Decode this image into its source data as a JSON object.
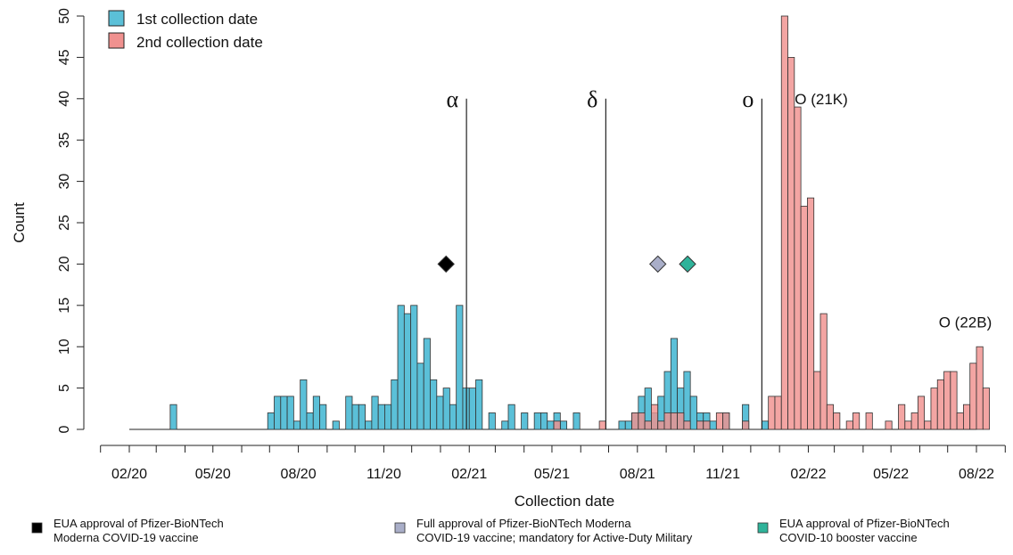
{
  "chart_data": {
    "type": "histogram",
    "title": "",
    "xlabel": "Collection date",
    "ylabel": "Count",
    "ylim": [
      0,
      50
    ],
    "y_ticks": [
      0,
      5,
      10,
      15,
      20,
      25,
      30,
      35,
      40,
      45,
      50
    ],
    "x_range_months": [
      "2020-01",
      "2022-09"
    ],
    "x_ticks": [
      {
        "label": "02/20",
        "month": "2020-02"
      },
      {
        "label": "05/20",
        "month": "2020-05"
      },
      {
        "label": "08/20",
        "month": "2020-08"
      },
      {
        "label": "11/20",
        "month": "2020-11"
      },
      {
        "label": "02/21",
        "month": "2021-02"
      },
      {
        "label": "05/21",
        "month": "2021-05"
      },
      {
        "label": "08/21",
        "month": "2021-08"
      },
      {
        "label": "11/21",
        "month": "2021-11"
      },
      {
        "label": "02/22",
        "month": "2022-02"
      },
      {
        "label": "05/22",
        "month": "2022-05"
      },
      {
        "label": "08/22",
        "month": "2022-08"
      }
    ],
    "bin_width_days": 7,
    "series": [
      {
        "name": "1st collection date",
        "color": "#5bc0d8",
        "bins": [
          [
            "2020-03-16",
            3
          ],
          [
            "2020-06-29",
            2
          ],
          [
            "2020-07-06",
            4
          ],
          [
            "2020-07-13",
            4
          ],
          [
            "2020-07-20",
            4
          ],
          [
            "2020-07-27",
            1
          ],
          [
            "2020-08-03",
            6
          ],
          [
            "2020-08-10",
            2
          ],
          [
            "2020-08-17",
            4
          ],
          [
            "2020-08-24",
            3
          ],
          [
            "2020-09-07",
            1
          ],
          [
            "2020-09-21",
            4
          ],
          [
            "2020-09-28",
            3
          ],
          [
            "2020-10-05",
            3
          ],
          [
            "2020-10-12",
            1
          ],
          [
            "2020-10-19",
            4
          ],
          [
            "2020-10-26",
            3
          ],
          [
            "2020-11-02",
            3
          ],
          [
            "2020-11-09",
            6
          ],
          [
            "2020-11-16",
            15
          ],
          [
            "2020-11-23",
            14
          ],
          [
            "2020-11-30",
            15
          ],
          [
            "2020-12-07",
            8
          ],
          [
            "2020-12-14",
            11
          ],
          [
            "2020-12-21",
            6
          ],
          [
            "2020-12-28",
            4
          ],
          [
            "2021-01-04",
            5
          ],
          [
            "2021-01-11",
            3
          ],
          [
            "2021-01-18",
            15
          ],
          [
            "2021-01-25",
            5
          ],
          [
            "2021-02-01",
            5
          ],
          [
            "2021-02-08",
            6
          ],
          [
            "2021-02-22",
            2
          ],
          [
            "2021-03-08",
            1
          ],
          [
            "2021-03-15",
            3
          ],
          [
            "2021-03-29",
            2
          ],
          [
            "2021-04-12",
            2
          ],
          [
            "2021-04-19",
            2
          ],
          [
            "2021-04-26",
            1
          ],
          [
            "2021-05-03",
            2
          ],
          [
            "2021-05-10",
            1
          ],
          [
            "2021-05-24",
            2
          ],
          [
            "2021-07-12",
            1
          ],
          [
            "2021-07-19",
            1
          ],
          [
            "2021-07-26",
            2
          ],
          [
            "2021-08-02",
            4
          ],
          [
            "2021-08-09",
            5
          ],
          [
            "2021-08-16",
            2
          ],
          [
            "2021-08-23",
            4
          ],
          [
            "2021-08-30",
            7
          ],
          [
            "2021-09-06",
            11
          ],
          [
            "2021-09-13",
            5
          ],
          [
            "2021-09-20",
            7
          ],
          [
            "2021-09-27",
            4
          ],
          [
            "2021-10-04",
            2
          ],
          [
            "2021-10-11",
            2
          ],
          [
            "2021-10-18",
            1
          ],
          [
            "2021-11-01",
            2
          ],
          [
            "2021-11-22",
            3
          ],
          [
            "2021-12-13",
            1
          ]
        ]
      },
      {
        "name": "2nd collection date",
        "color": "#f0918f",
        "bins": [
          [
            "2021-05-03",
            1
          ],
          [
            "2021-06-21",
            1
          ],
          [
            "2021-07-26",
            2
          ],
          [
            "2021-08-02",
            2
          ],
          [
            "2021-08-09",
            1
          ],
          [
            "2021-08-16",
            3
          ],
          [
            "2021-08-23",
            1
          ],
          [
            "2021-08-30",
            2
          ],
          [
            "2021-09-06",
            2
          ],
          [
            "2021-09-13",
            2
          ],
          [
            "2021-09-20",
            1
          ],
          [
            "2021-10-04",
            1
          ],
          [
            "2021-10-11",
            1
          ],
          [
            "2021-10-25",
            2
          ],
          [
            "2021-11-01",
            2
          ],
          [
            "2021-11-22",
            1
          ],
          [
            "2021-12-20",
            4
          ],
          [
            "2021-12-27",
            4
          ],
          [
            "2022-01-03",
            50
          ],
          [
            "2022-01-10",
            45
          ],
          [
            "2022-01-17",
            39
          ],
          [
            "2022-01-24",
            27
          ],
          [
            "2022-01-31",
            28
          ],
          [
            "2022-02-07",
            7
          ],
          [
            "2022-02-14",
            14
          ],
          [
            "2022-02-21",
            3
          ],
          [
            "2022-02-28",
            2
          ],
          [
            "2022-03-14",
            1
          ],
          [
            "2022-03-21",
            2
          ],
          [
            "2022-04-04",
            2
          ],
          [
            "2022-04-25",
            1
          ],
          [
            "2022-05-09",
            3
          ],
          [
            "2022-05-16",
            1
          ],
          [
            "2022-05-23",
            2
          ],
          [
            "2022-05-30",
            4
          ],
          [
            "2022-06-06",
            1
          ],
          [
            "2022-06-13",
            5
          ],
          [
            "2022-06-20",
            6
          ],
          [
            "2022-06-27",
            7
          ],
          [
            "2022-07-04",
            7
          ],
          [
            "2022-07-11",
            2
          ],
          [
            "2022-07-18",
            3
          ],
          [
            "2022-07-25",
            8
          ],
          [
            "2022-08-01",
            10
          ],
          [
            "2022-08-08",
            5
          ]
        ]
      }
    ],
    "overlap_color": "#9e8894",
    "variant_lines": [
      {
        "label": "α",
        "date": "2021-01-29"
      },
      {
        "label": "δ",
        "date": "2021-06-28"
      },
      {
        "label": "o",
        "date": "2021-12-13"
      }
    ],
    "annotations": [
      {
        "label": "O (21K)",
        "date": "2022-02-15",
        "y": 40
      },
      {
        "label": "O (22B)",
        "date": "2022-07-20",
        "y": 13
      }
    ],
    "markers": [
      {
        "date": "2021-01-07",
        "y": 20,
        "color": "#000000",
        "note": "EUA approval of Pfizer-BioNTech\n Moderna COVID-19 vaccine"
      },
      {
        "date": "2021-08-23",
        "y": 20,
        "color": "#a9aec8",
        "note": "Full approval of Pfizer-BioNTech Moderna\nCOVID-19 vaccine; mandatory for Active-Duty Military"
      },
      {
        "date": "2021-09-24",
        "y": 20,
        "color": "#2fb39a",
        "note": "EUA approval of Pfizer-BioNTech\nCOVID-10 booster vaccine"
      }
    ],
    "legend_position": "top-left",
    "grid": false
  }
}
